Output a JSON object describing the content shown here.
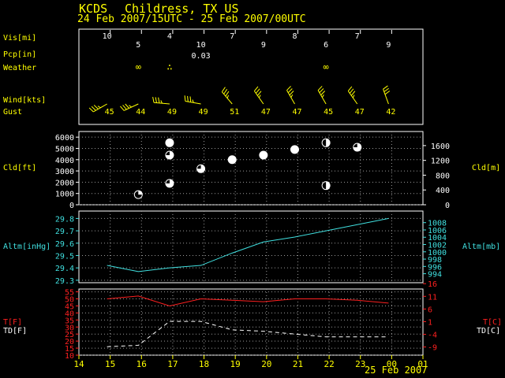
{
  "header": {
    "station": "KCDS",
    "location": "Childress, TX US",
    "range": "24 Feb 2007/15UTC - 25 Feb 2007/00UTC"
  },
  "colors": {
    "background": "#000000",
    "header": "#ffff00",
    "label": "#ffff00",
    "cloud_axis": "#ffffff",
    "altimeter": "#40e0e0",
    "temp": "#ff2020",
    "dewpoint": "#ffffff",
    "time_axis": "#ffff00",
    "frame": "#ffffff"
  },
  "labels": {
    "vis": "Vis[mi]",
    "pcp": "Pcp[in]",
    "weather": "Weather",
    "wind": "Wind[kts]",
    "gust": "Gust",
    "cld_left": "Cld[ft]",
    "cld_right": "Cld[m]",
    "alt_left": "Altm[inHg]",
    "alt_right": "Altm[mb]",
    "temp_left": "T[F]",
    "dew_left": "TD[F]",
    "temp_right": "T[C]",
    "dew_right": "TD[C]",
    "date": "25 Feb 2007"
  },
  "obs": {
    "visibility": [
      {
        "hour": 14.9,
        "text": "10"
      },
      {
        "hour": 15.9,
        "text": "5"
      },
      {
        "hour": 16.9,
        "text": "4"
      },
      {
        "hour": 17.9,
        "text": "10"
      },
      {
        "hour": 18.9,
        "text": "7"
      },
      {
        "hour": 19.9,
        "text": "9"
      },
      {
        "hour": 20.9,
        "text": "8"
      },
      {
        "hour": 21.9,
        "text": "6"
      },
      {
        "hour": 22.9,
        "text": "7"
      },
      {
        "hour": 23.9,
        "text": "9"
      }
    ],
    "precip": [
      {
        "hour": 17.9,
        "text": "0.03"
      }
    ],
    "weather": [
      {
        "hour": 15.9,
        "symbol": "haze",
        "glyph": "∞"
      },
      {
        "hour": 16.9,
        "symbol": "drizzle",
        "glyph": "∴"
      },
      {
        "hour": 21.9,
        "symbol": "haze",
        "glyph": "∞"
      }
    ],
    "wind": [
      {
        "hour": 14.9,
        "dir": 240,
        "speed": 35
      },
      {
        "hour": 15.9,
        "dir": 245,
        "speed": 35
      },
      {
        "hour": 16.9,
        "dir": 275,
        "speed": 35
      },
      {
        "hour": 17.9,
        "dir": 280,
        "speed": 35
      },
      {
        "hour": 18.9,
        "dir": 320,
        "speed": 35
      },
      {
        "hour": 19.9,
        "dir": 325,
        "speed": 35
      },
      {
        "hour": 20.9,
        "dir": 330,
        "speed": 35
      },
      {
        "hour": 21.9,
        "dir": 330,
        "speed": 35
      },
      {
        "hour": 22.9,
        "dir": 325,
        "speed": 35
      },
      {
        "hour": 23.9,
        "dir": 340,
        "speed": 30
      }
    ],
    "gust": [
      {
        "hour": 14.9,
        "text": "45"
      },
      {
        "hour": 15.9,
        "text": "44"
      },
      {
        "hour": 16.9,
        "text": "49"
      },
      {
        "hour": 17.9,
        "text": "49"
      },
      {
        "hour": 18.9,
        "text": "51"
      },
      {
        "hour": 19.9,
        "text": "47"
      },
      {
        "hour": 20.9,
        "text": "47"
      },
      {
        "hour": 21.9,
        "text": "45"
      },
      {
        "hour": 22.9,
        "text": "47"
      },
      {
        "hour": 23.9,
        "text": "42"
      }
    ]
  },
  "chart_data": [
    {
      "type": "scatter",
      "name": "clouds",
      "xlim": [
        14,
        25
      ],
      "ylim_ft": [
        0,
        6500
      ],
      "yticks_ft": [
        "0",
        "1000",
        "2000",
        "3000",
        "4000",
        "5000",
        "6000"
      ],
      "yticks_ft_values": [
        0,
        1000,
        2000,
        3000,
        4000,
        5000,
        6000
      ],
      "ylim_m": [
        0,
        1981
      ],
      "yticks_m": [
        "0",
        "400",
        "800",
        "1200",
        "1600"
      ],
      "yticks_m_values": [
        0,
        400,
        800,
        1200,
        1600
      ],
      "grid": true,
      "points": [
        {
          "hour": 15.9,
          "height_ft": 900,
          "cover": "few"
        },
        {
          "hour": 16.9,
          "height_ft": 1900,
          "cover": "bkn"
        },
        {
          "hour": 16.9,
          "height_ft": 4400,
          "cover": "bkn"
        },
        {
          "hour": 16.9,
          "height_ft": 5500,
          "cover": "ovc"
        },
        {
          "hour": 17.9,
          "height_ft": 3200,
          "cover": "bkn"
        },
        {
          "hour": 18.9,
          "height_ft": 4000,
          "cover": "ovc"
        },
        {
          "hour": 19.9,
          "height_ft": 4400,
          "cover": "ovc"
        },
        {
          "hour": 20.9,
          "height_ft": 4900,
          "cover": "ovc"
        },
        {
          "hour": 21.9,
          "height_ft": 1700,
          "cover": "sct"
        },
        {
          "hour": 21.9,
          "height_ft": 5500,
          "cover": "sct"
        },
        {
          "hour": 22.9,
          "height_ft": 5100,
          "cover": "bkn"
        }
      ]
    },
    {
      "type": "line",
      "name": "altimeter",
      "xlim": [
        14,
        25
      ],
      "ylim": [
        29.28,
        29.86
      ],
      "yticks": [
        "29.3",
        "29.4",
        "29.5",
        "29.6",
        "29.7",
        "29.8"
      ],
      "yticks_values": [
        29.3,
        29.4,
        29.5,
        29.6,
        29.7,
        29.8
      ],
      "yticks_right": [
        "994",
        "996",
        "998",
        "1000",
        "1002",
        "1004",
        "1006",
        "1008"
      ],
      "yticks_right_values": [
        994,
        996,
        998,
        1000,
        1002,
        1004,
        1006,
        1008
      ],
      "grid": true,
      "x": [
        14.9,
        15.9,
        16.9,
        17.9,
        18.9,
        19.9,
        20.9,
        21.9,
        22.9,
        23.9
      ],
      "values": [
        29.42,
        29.37,
        29.4,
        29.42,
        29.52,
        29.61,
        29.65,
        29.7,
        29.75,
        29.8
      ]
    },
    {
      "type": "line",
      "name": "temperature",
      "xlim": [
        14,
        25
      ],
      "ylim": [
        10,
        57
      ],
      "yticks": [
        "10",
        "15",
        "20",
        "25",
        "30",
        "35",
        "40",
        "45",
        "50",
        "55"
      ],
      "yticks_values": [
        10,
        15,
        20,
        25,
        30,
        35,
        40,
        45,
        50,
        55
      ],
      "yticks_right": [
        "-9",
        "-4",
        "1",
        "6",
        "11",
        "16"
      ],
      "yticks_right_values": [
        15.8,
        24.8,
        33.8,
        42.8,
        51.8,
        60.8
      ],
      "xticks": [
        "14",
        "15",
        "16",
        "17",
        "18",
        "19",
        "20",
        "21",
        "22",
        "23",
        "00",
        "01"
      ],
      "xticks_values": [
        14,
        15,
        16,
        17,
        18,
        19,
        20,
        21,
        22,
        23,
        24,
        25
      ],
      "grid": true,
      "series": [
        {
          "key": "t",
          "style": "solid",
          "x": [
            14.9,
            15.9,
            16.9,
            17.9,
            18.9,
            19.9,
            20.9,
            21.9,
            22.9,
            23.9
          ],
          "values": [
            50,
            52,
            45,
            50,
            49,
            48,
            50,
            50,
            49,
            47
          ]
        },
        {
          "key": "td",
          "style": "dashed",
          "x": [
            14.9,
            15.9,
            16.9,
            17.9,
            18.9,
            19.9,
            20.9,
            21.9,
            22.9,
            23.9
          ],
          "values": [
            16,
            17,
            34,
            34,
            28,
            27,
            25,
            23,
            23,
            23
          ]
        }
      ]
    }
  ]
}
